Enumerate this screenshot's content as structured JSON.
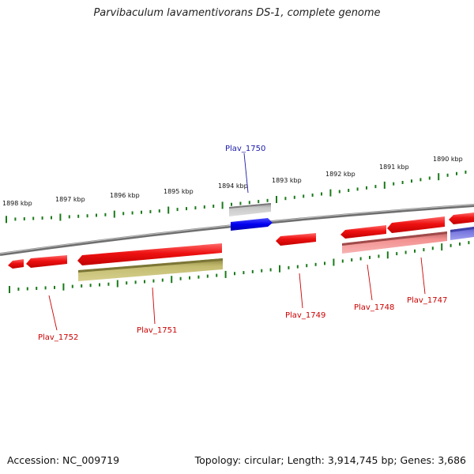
{
  "title": "Parvibaculum lavamentivorans DS-1, complete genome",
  "footer": {
    "accession": "Accession: NC_009719",
    "summary": "Topology: circular; Length: 3,914,745 bp; Genes: 3,686"
  },
  "colors": {
    "backbone": "#8a8a8a",
    "tick": "#1a7a1a",
    "gene_forward_red": "#ee1111",
    "gene_reverse_red": "#ee1111",
    "highlight_gene": "#0a0af0",
    "gray_gene": "#b0b0b0",
    "olive_gene": "#b8b060",
    "pink_gene": "#f08a8a",
    "purple_gene": "#7070d8",
    "label_red": "#cc0000",
    "label_blue": "#1a1aaa"
  },
  "kbp_ticks": [
    "1898 kbp",
    "1897 kbp",
    "1896 kbp",
    "1895 kbp",
    "1894 kbp",
    "1893 kbp",
    "1892 kbp",
    "1891 kbp",
    "1890 kbp"
  ],
  "gene_labels": [
    {
      "name": "Plav_1750",
      "color": "blue"
    },
    {
      "name": "Plav_1752",
      "color": "red"
    },
    {
      "name": "Plav_1751",
      "color": "red"
    },
    {
      "name": "Plav_1749",
      "color": "red"
    },
    {
      "name": "Plav_1748",
      "color": "red"
    },
    {
      "name": "Plav_1747",
      "color": "red"
    }
  ]
}
